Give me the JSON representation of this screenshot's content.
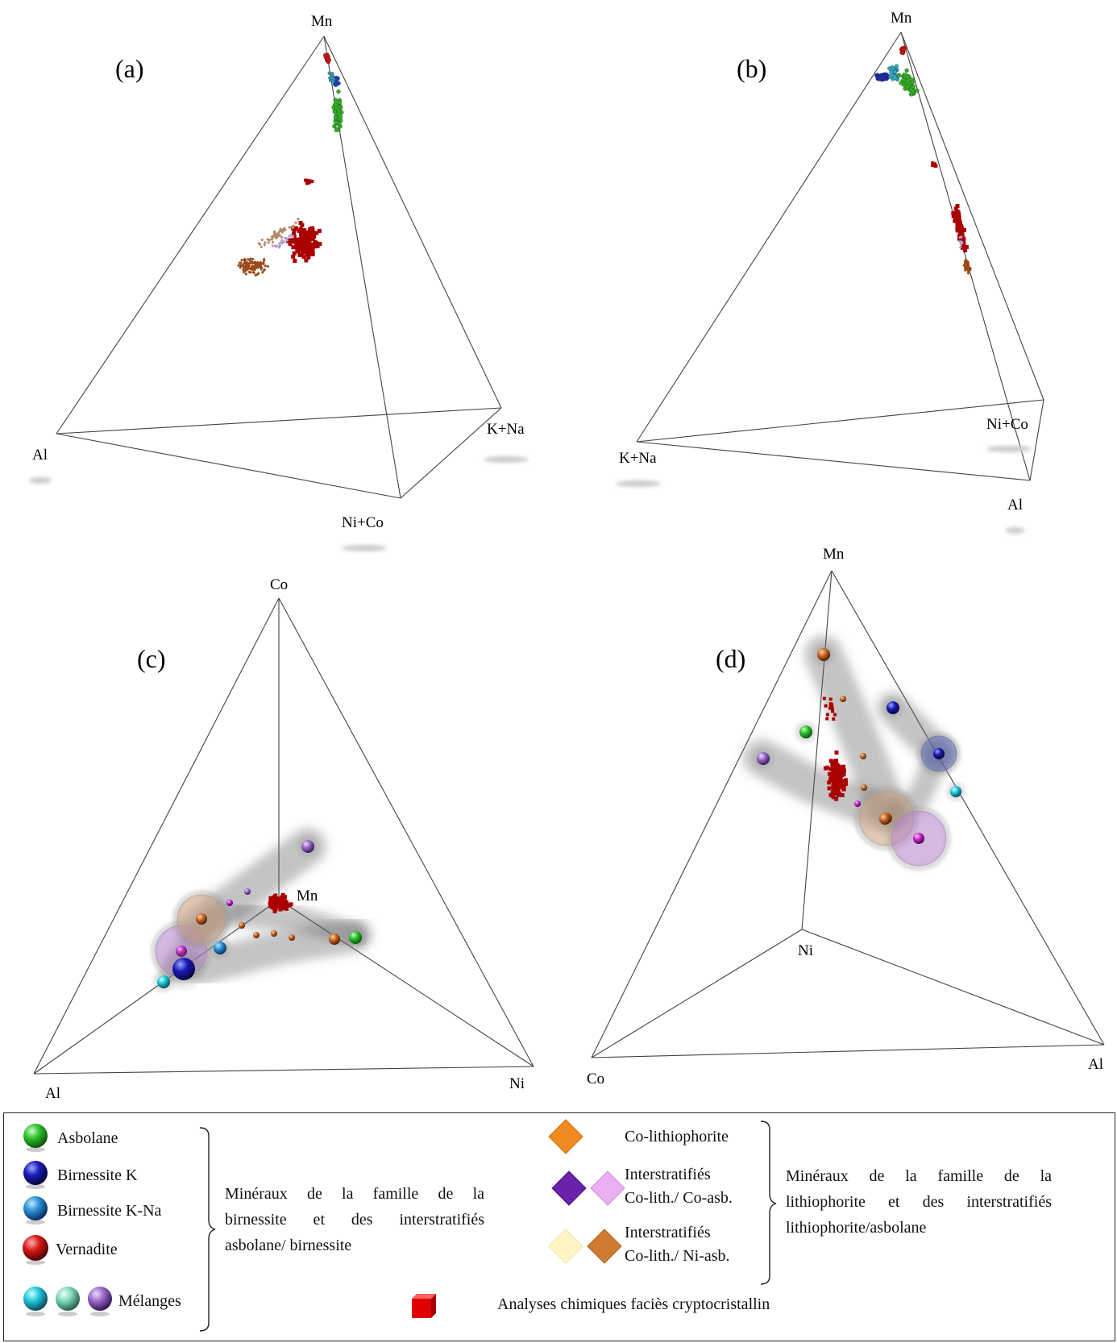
{
  "panels": [
    {
      "id": "a",
      "label": "(a)",
      "vertices": [
        "Mn",
        "Al",
        "K+Na",
        "Ni+Co"
      ]
    },
    {
      "id": "b",
      "label": "(b)",
      "vertices": [
        "Mn",
        "K+Na",
        "Ni+Co",
        "Al"
      ]
    },
    {
      "id": "c",
      "label": "(c)",
      "vertices": [
        "Co",
        "Mn",
        "Al",
        "Ni"
      ]
    },
    {
      "id": "d",
      "label": "(d)",
      "vertices": [
        "Mn",
        "Ni",
        "Co",
        "Al"
      ]
    }
  ],
  "legend": {
    "left_items": [
      {
        "label": "Asbolane",
        "color": "#22aa22",
        "icon": "sphere-icon"
      },
      {
        "label": "Birnessite K",
        "color": "#1a1ab0",
        "icon": "sphere-icon"
      },
      {
        "label": "Birnessite K-Na",
        "color": "#2a8fd8",
        "icon": "sphere-icon"
      },
      {
        "label": "Vernadite",
        "color": "#d01818",
        "icon": "sphere-icon"
      },
      {
        "label": "Mélanges",
        "colors": [
          "#22c8d8",
          "#7fd8b8",
          "#9a6ac8"
        ],
        "icon": "sphere-icon"
      }
    ],
    "left_group_lines": [
      "Minéraux de la famille de la",
      "birnessite et des interstratifiés",
      "asbolane/ birnessite"
    ],
    "right_items": [
      {
        "label": "Co-lithiophorite",
        "colors": [
          "#f08a20"
        ],
        "icon": "diamond-icon"
      },
      {
        "label_lines": [
          "Interstratifiés",
          "Co-lith./ Co-asb."
        ],
        "colors": [
          "#6a22aa",
          "#e8a8f0"
        ],
        "icon": "diamond-icon"
      },
      {
        "label_lines": [
          "Interstratifiés",
          "Co-lith./ Ni-asb."
        ],
        "colors": [
          "#fff4c0",
          "#d07a30"
        ],
        "icon": "diamond-icon"
      }
    ],
    "right_group_lines": [
      "Minéraux de la famille de la",
      "lithiophorite et des interstratifiés",
      "lithiophorite/asbolane"
    ],
    "analyses": {
      "label": "Analyses chimiques faciès cryptocristallin",
      "color": "#dd0000",
      "icon": "cube-icon"
    }
  }
}
